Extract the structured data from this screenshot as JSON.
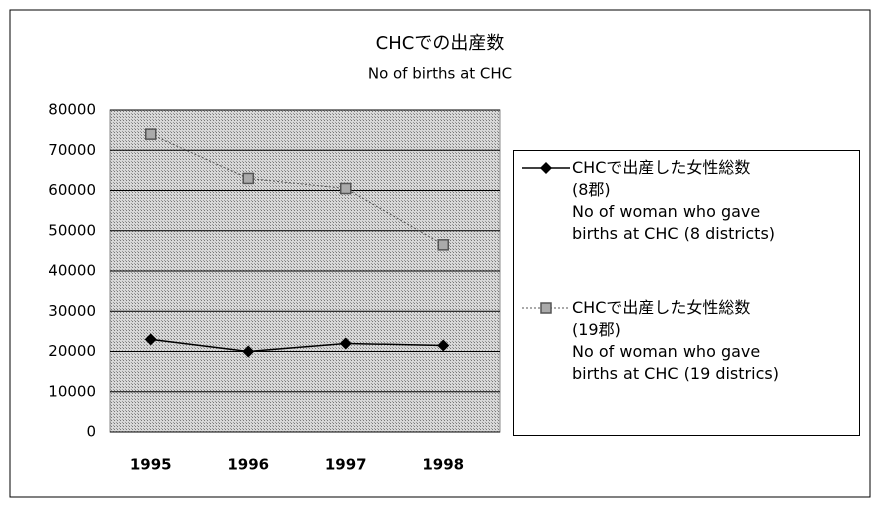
{
  "chart_data": {
    "type": "line",
    "title": "CHCでの出産数",
    "subtitle": "No of births at CHC",
    "categories": [
      "1995",
      "1996",
      "1997",
      "1998"
    ],
    "series": [
      {
        "name": "CHCで出産した女性総数\n(8郡)\nNo of woman who gave\nbirths at CHC (8 districts)",
        "color": "#000000",
        "values": [
          23000,
          20000,
          22000,
          21500
        ]
      },
      {
        "name": "CHCで出産した女性総数\n(19郡)\nNo of woman who gave\nbirths at CHC (19 districs)",
        "color": "#555555",
        "values": [
          74000,
          63000,
          60500,
          46500
        ]
      }
    ],
    "ylim": [
      0,
      80000
    ],
    "yticks": [
      0,
      10000,
      20000,
      30000,
      40000,
      50000,
      60000,
      70000,
      80000
    ],
    "grid": true,
    "legend": "right"
  }
}
